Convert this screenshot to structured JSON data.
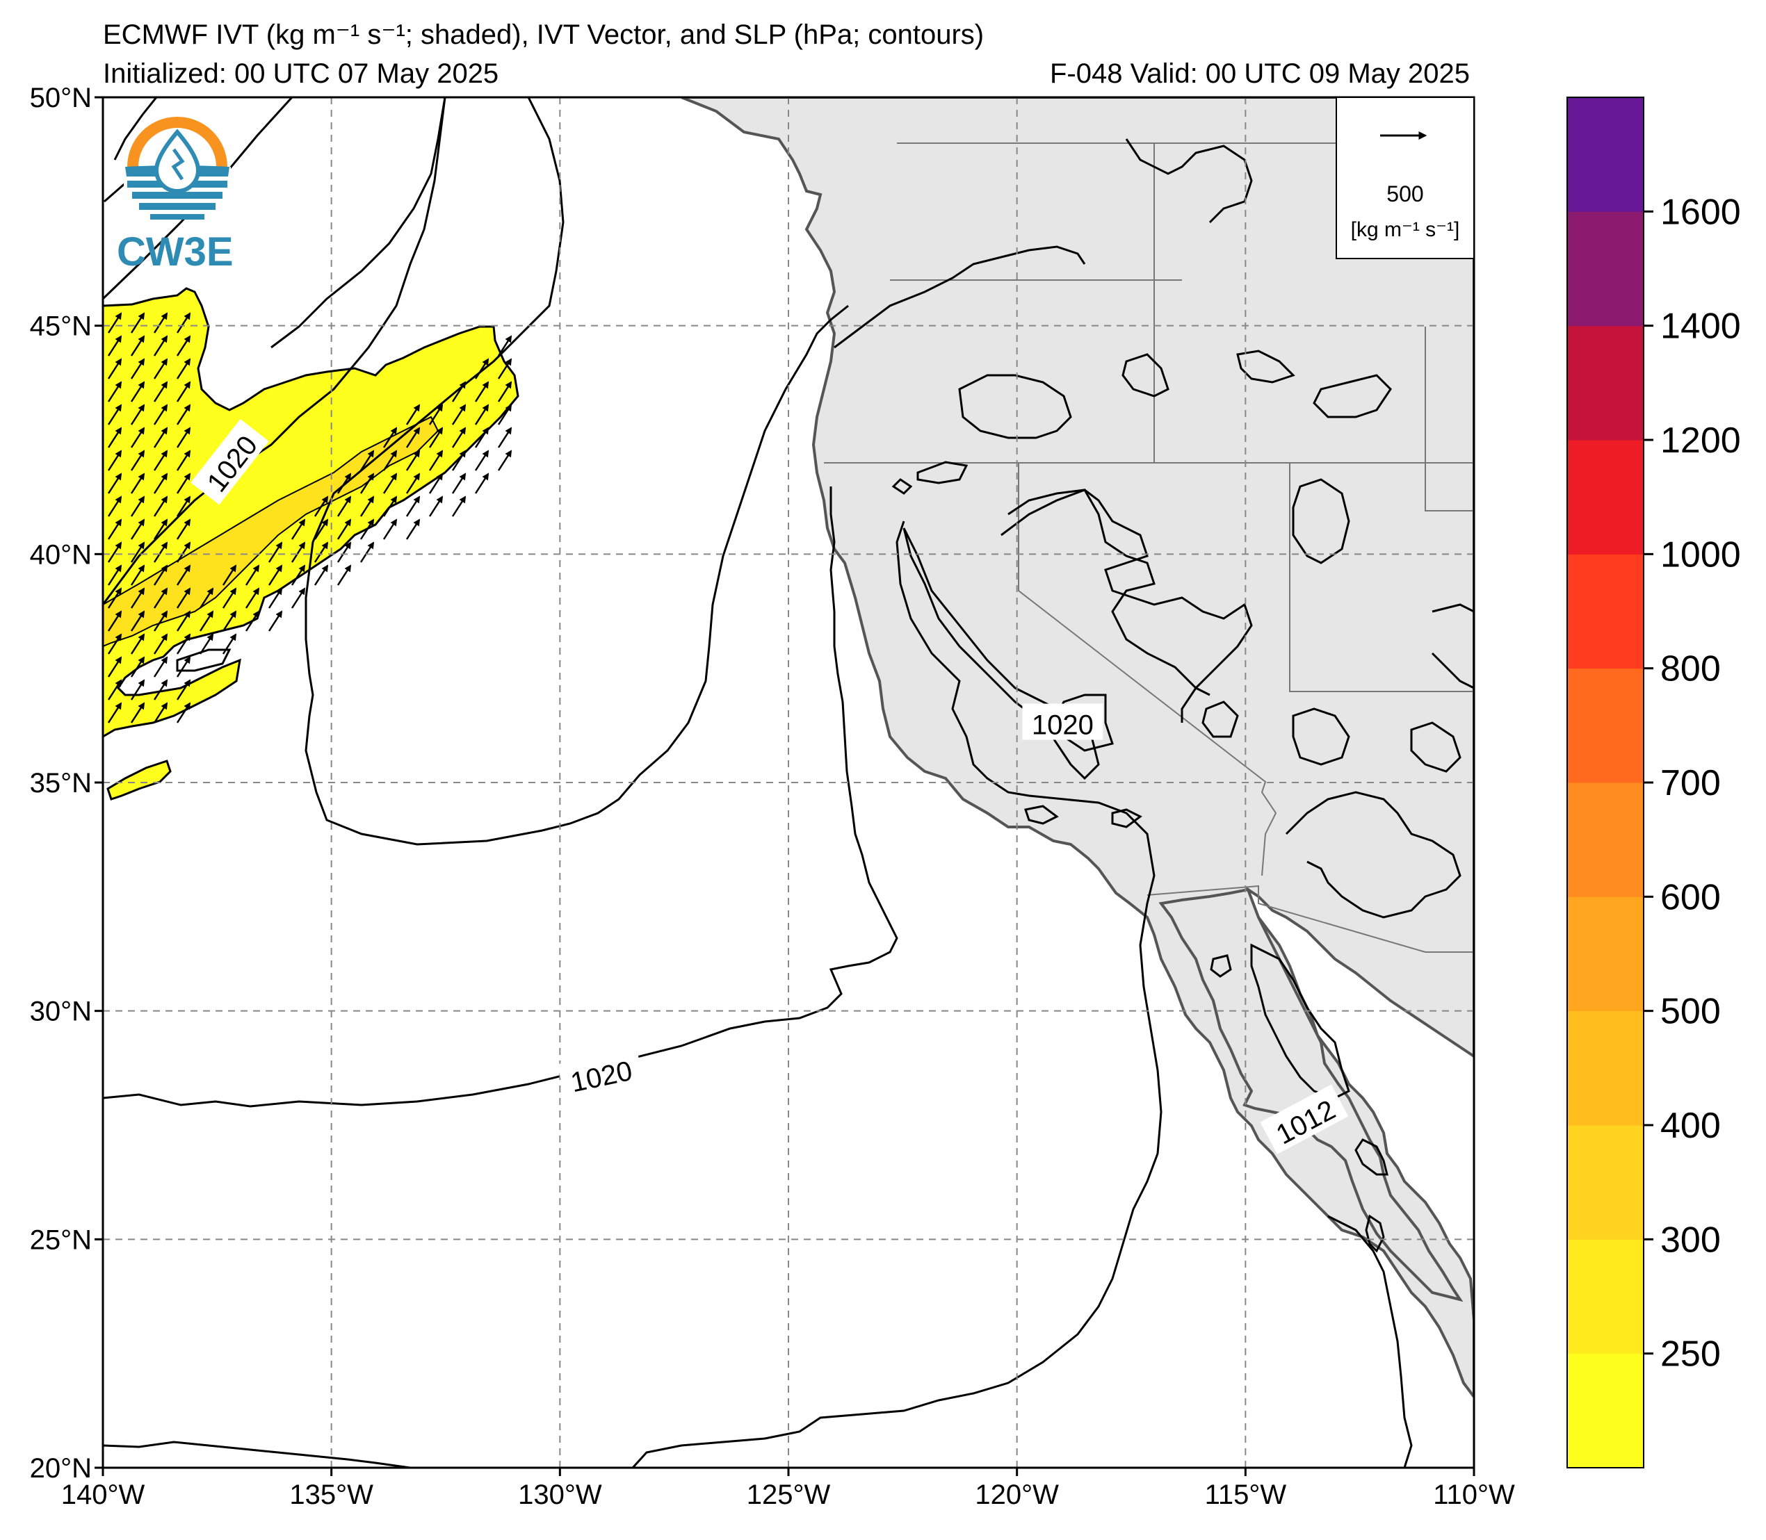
{
  "title": {
    "line1": "ECMWF IVT (kg m⁻¹ s⁻¹; shaded), IVT Vector, and SLP (hPa; contours)",
    "line2_left": "Initialized: 00 UTC 07 May 2025",
    "line2_right": "F-048  Valid: 00 UTC 09 May 2025"
  },
  "logo": {
    "text": "CW3E"
  },
  "vector_key": {
    "value": "500",
    "unit": "[kg m⁻¹ s⁻¹]"
  },
  "axes": {
    "lon_labels": [
      "140°W",
      "135°W",
      "130°W",
      "125°W",
      "120°W",
      "115°W",
      "110°W"
    ],
    "lat_labels": [
      "50°N",
      "45°N",
      "40°N",
      "35°N",
      "30°N",
      "25°N",
      "20°N"
    ],
    "lon_range": [
      -140,
      -110
    ],
    "lat_range": [
      20,
      50
    ],
    "grid": "dashed"
  },
  "contour_labels": [
    {
      "text": "1020",
      "lon": -137.2,
      "lat": 42.0,
      "rot": -52
    },
    {
      "text": "1020",
      "lon": -119.0,
      "lat": 36.3,
      "rot": 0
    },
    {
      "text": "1020",
      "lon": -129.1,
      "lat": 28.6,
      "rot": -12
    },
    {
      "text": "1012",
      "lon": -113.7,
      "lat": 27.6,
      "rot": -28
    }
  ],
  "colorbar": {
    "labels": [
      "1600",
      "1400",
      "1200",
      "1000",
      "800",
      "700",
      "600",
      "500",
      "400",
      "300",
      "250"
    ],
    "colors": [
      "#ffff1e",
      "#ffea1e",
      "#ffd31e",
      "#ffbe1e",
      "#ffa61e",
      "#ff8c1e",
      "#ff6a1e",
      "#ff3c1e",
      "#ee1c24",
      "#c4143c",
      "#8c1a6e",
      "#661896"
    ]
  },
  "colors": {
    "land": "#e6e6e6",
    "coast": "#555555",
    "ivt_low": "#ffff1e",
    "ivt_mid": "#ffe21e"
  }
}
